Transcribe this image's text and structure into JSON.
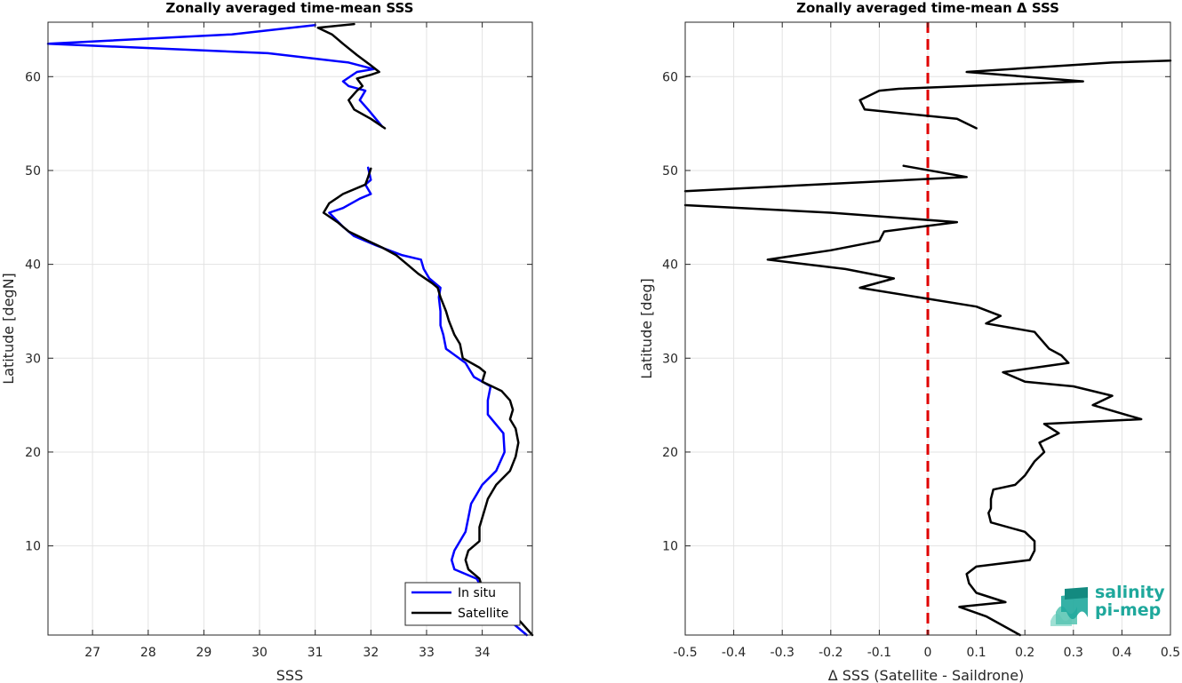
{
  "chart_data": [
    {
      "type": "line",
      "title": "Zonally averaged time-mean SSS",
      "xlabel": "SSS",
      "ylabel": "Latitude [degN]",
      "xlim": [
        26.2,
        34.9
      ],
      "ylim": [
        0.5,
        65.8
      ],
      "xticks": [
        27,
        28,
        29,
        30,
        31,
        32,
        33,
        34
      ],
      "yticks": [
        10,
        20,
        30,
        40,
        50,
        60
      ],
      "grid": true,
      "legend": "bottom-right",
      "series": [
        {
          "name": "In situ",
          "color": "#0000ff",
          "segments": [
            [
              [
                34.8,
                0.5
              ],
              [
                34.5,
                2
              ],
              [
                34.2,
                3.5
              ],
              [
                34.0,
                5.5
              ],
              [
                33.9,
                6.5
              ],
              [
                33.5,
                7.5
              ],
              [
                33.45,
                8.5
              ],
              [
                33.5,
                9.5
              ],
              [
                33.7,
                11.5
              ],
              [
                33.75,
                13
              ],
              [
                33.8,
                14.5
              ],
              [
                33.9,
                15.5
              ],
              [
                34.0,
                16.5
              ],
              [
                34.25,
                18
              ],
              [
                34.4,
                20
              ],
              [
                34.38,
                22
              ],
              [
                34.1,
                24
              ],
              [
                34.1,
                25.5
              ],
              [
                34.15,
                27
              ],
              [
                33.85,
                28
              ],
              [
                33.7,
                29.5
              ],
              [
                33.35,
                31
              ],
              [
                33.3,
                32.5
              ],
              [
                33.25,
                33.5
              ],
              [
                33.25,
                35
              ],
              [
                33.22,
                36.5
              ],
              [
                33.25,
                37.5
              ],
              [
                33.05,
                38.5
              ],
              [
                32.95,
                39.5
              ],
              [
                32.9,
                40.5
              ],
              [
                32.55,
                41
              ],
              [
                32.1,
                42
              ],
              [
                31.7,
                43
              ],
              [
                31.5,
                44
              ],
              [
                31.25,
                45.5
              ],
              [
                31.5,
                46
              ],
              [
                31.8,
                47
              ],
              [
                32.0,
                47.5
              ],
              [
                31.9,
                48.5
              ],
              [
                32.0,
                49
              ],
              [
                31.95,
                50.3
              ]
            ],
            [
              [
                32.2,
                54.7
              ],
              [
                31.95,
                56.5
              ],
              [
                31.8,
                57.5
              ],
              [
                31.9,
                58.5
              ],
              [
                31.6,
                59
              ],
              [
                31.5,
                59.5
              ],
              [
                31.75,
                60.5
              ],
              [
                32.05,
                60.8
              ],
              [
                31.6,
                61.5
              ],
              [
                30.15,
                62.5
              ],
              [
                26.2,
                63.5
              ],
              [
                29.5,
                64.5
              ],
              [
                31.0,
                65.5
              ]
            ]
          ]
        },
        {
          "name": "Satellite",
          "color": "#000000",
          "segments": [
            [
              [
                34.9,
                0.5
              ],
              [
                34.6,
                2.5
              ],
              [
                34.2,
                4.5
              ],
              [
                34.0,
                5.5
              ],
              [
                33.95,
                6.5
              ],
              [
                33.75,
                7.5
              ],
              [
                33.7,
                8.5
              ],
              [
                33.75,
                9.5
              ],
              [
                33.95,
                10.5
              ],
              [
                33.95,
                12
              ],
              [
                34.05,
                14
              ],
              [
                34.1,
                15
              ],
              [
                34.25,
                16.5
              ],
              [
                34.5,
                18
              ],
              [
                34.6,
                19.5
              ],
              [
                34.65,
                21
              ],
              [
                34.6,
                22.5
              ],
              [
                34.5,
                23.5
              ],
              [
                34.55,
                24.5
              ],
              [
                34.5,
                25.5
              ],
              [
                34.35,
                26.5
              ],
              [
                34.0,
                27.5
              ],
              [
                34.05,
                28.5
              ],
              [
                33.95,
                29
              ],
              [
                33.65,
                30
              ],
              [
                33.6,
                31.5
              ],
              [
                33.5,
                32.5
              ],
              [
                33.4,
                34
              ],
              [
                33.35,
                35
              ],
              [
                33.25,
                36.5
              ],
              [
                33.2,
                37.5
              ],
              [
                33.1,
                38
              ],
              [
                32.85,
                39
              ],
              [
                32.65,
                40
              ],
              [
                32.45,
                41
              ],
              [
                32.2,
                41.8
              ],
              [
                31.95,
                42.5
              ],
              [
                31.6,
                43.5
              ],
              [
                31.4,
                44.5
              ],
              [
                31.15,
                45.5
              ],
              [
                31.25,
                46.5
              ],
              [
                31.5,
                47.5
              ],
              [
                31.9,
                48.5
              ],
              [
                31.95,
                49.3
              ],
              [
                32.0,
                50.2
              ]
            ],
            [
              [
                32.25,
                54.5
              ],
              [
                32.0,
                55.5
              ],
              [
                31.7,
                56.5
              ],
              [
                31.6,
                57.5
              ],
              [
                31.75,
                58.5
              ],
              [
                31.85,
                59
              ],
              [
                31.75,
                59.8
              ],
              [
                32.0,
                60.2
              ],
              [
                32.15,
                60.5
              ],
              [
                32.0,
                61.2
              ],
              [
                31.75,
                62.3
              ],
              [
                31.5,
                63.5
              ],
              [
                31.3,
                64.5
              ],
              [
                31.05,
                65.2
              ],
              [
                31.7,
                65.6
              ]
            ]
          ]
        }
      ]
    },
    {
      "type": "line",
      "title": "Zonally averaged time-mean Δ SSS",
      "xlabel": "Δ SSS (Satellite - Saildrone)",
      "ylabel": "Latitude [deg]",
      "xlim": [
        -0.5,
        0.5
      ],
      "ylim": [
        0.5,
        65.8
      ],
      "xticks": [
        -0.5,
        -0.4,
        -0.3,
        -0.2,
        -0.1,
        0,
        0.1,
        0.2,
        0.3,
        0.4,
        0.5
      ],
      "yticks": [
        10,
        20,
        30,
        40,
        50,
        60
      ],
      "grid": true,
      "reference_line": {
        "x": 0,
        "color": "#e00000",
        "style": "dashed"
      },
      "series": [
        {
          "color": "#000000",
          "segments": [
            [
              [
                0.19,
                0.5
              ],
              [
                0.12,
                2.5
              ],
              [
                0.065,
                3.5
              ],
              [
                0.16,
                4
              ],
              [
                0.1,
                5
              ],
              [
                0.085,
                6
              ],
              [
                0.08,
                7
              ],
              [
                0.1,
                7.8
              ],
              [
                0.21,
                8.5
              ],
              [
                0.22,
                9.5
              ],
              [
                0.22,
                10.5
              ],
              [
                0.2,
                11.5
              ],
              [
                0.13,
                12.5
              ],
              [
                0.125,
                13.5
              ],
              [
                0.13,
                14
              ],
              [
                0.13,
                15
              ],
              [
                0.135,
                16
              ],
              [
                0.18,
                16.5
              ],
              [
                0.2,
                17.5
              ],
              [
                0.22,
                19
              ],
              [
                0.24,
                20
              ],
              [
                0.23,
                21
              ],
              [
                0.27,
                22
              ],
              [
                0.24,
                23
              ],
              [
                0.44,
                23.5
              ],
              [
                0.34,
                25
              ],
              [
                0.38,
                26
              ],
              [
                0.3,
                27
              ],
              [
                0.2,
                27.5
              ],
              [
                0.155,
                28.5
              ],
              [
                0.29,
                29.5
              ],
              [
                0.275,
                30.3
              ],
              [
                0.25,
                31
              ],
              [
                0.225,
                32.5
              ],
              [
                0.22,
                32.8
              ],
              [
                0.12,
                33.7
              ],
              [
                0.15,
                34.5
              ],
              [
                0.1,
                35.5
              ],
              [
                -0.02,
                36.5
              ],
              [
                -0.14,
                37.5
              ],
              [
                -0.07,
                38.5
              ],
              [
                -0.17,
                39.5
              ],
              [
                -0.33,
                40.5
              ],
              [
                -0.2,
                41.5
              ],
              [
                -0.1,
                42.5
              ],
              [
                -0.09,
                43.5
              ],
              [
                0.06,
                44.5
              ],
              [
                -0.2,
                45.5
              ],
              [
                -0.5,
                46.3
              ]
            ],
            [
              [
                -0.5,
                47.8
              ],
              [
                0.08,
                49.3
              ],
              [
                -0.05,
                50.5
              ]
            ],
            [
              [
                0.1,
                54.5
              ],
              [
                0.06,
                55.5
              ],
              [
                -0.13,
                56.5
              ],
              [
                -0.14,
                57.5
              ],
              [
                -0.1,
                58.5
              ],
              [
                -0.06,
                58.7
              ],
              [
                0.32,
                59.5
              ],
              [
                0.08,
                60.5
              ],
              [
                0.38,
                61.5
              ],
              [
                0.5,
                61.7
              ]
            ]
          ]
        }
      ]
    }
  ],
  "legend": {
    "in_situ": "In situ",
    "satellite": "Satellite"
  },
  "logo": {
    "line1": "salinity",
    "line2": "pi-mep",
    "color": "#1fa89c"
  }
}
